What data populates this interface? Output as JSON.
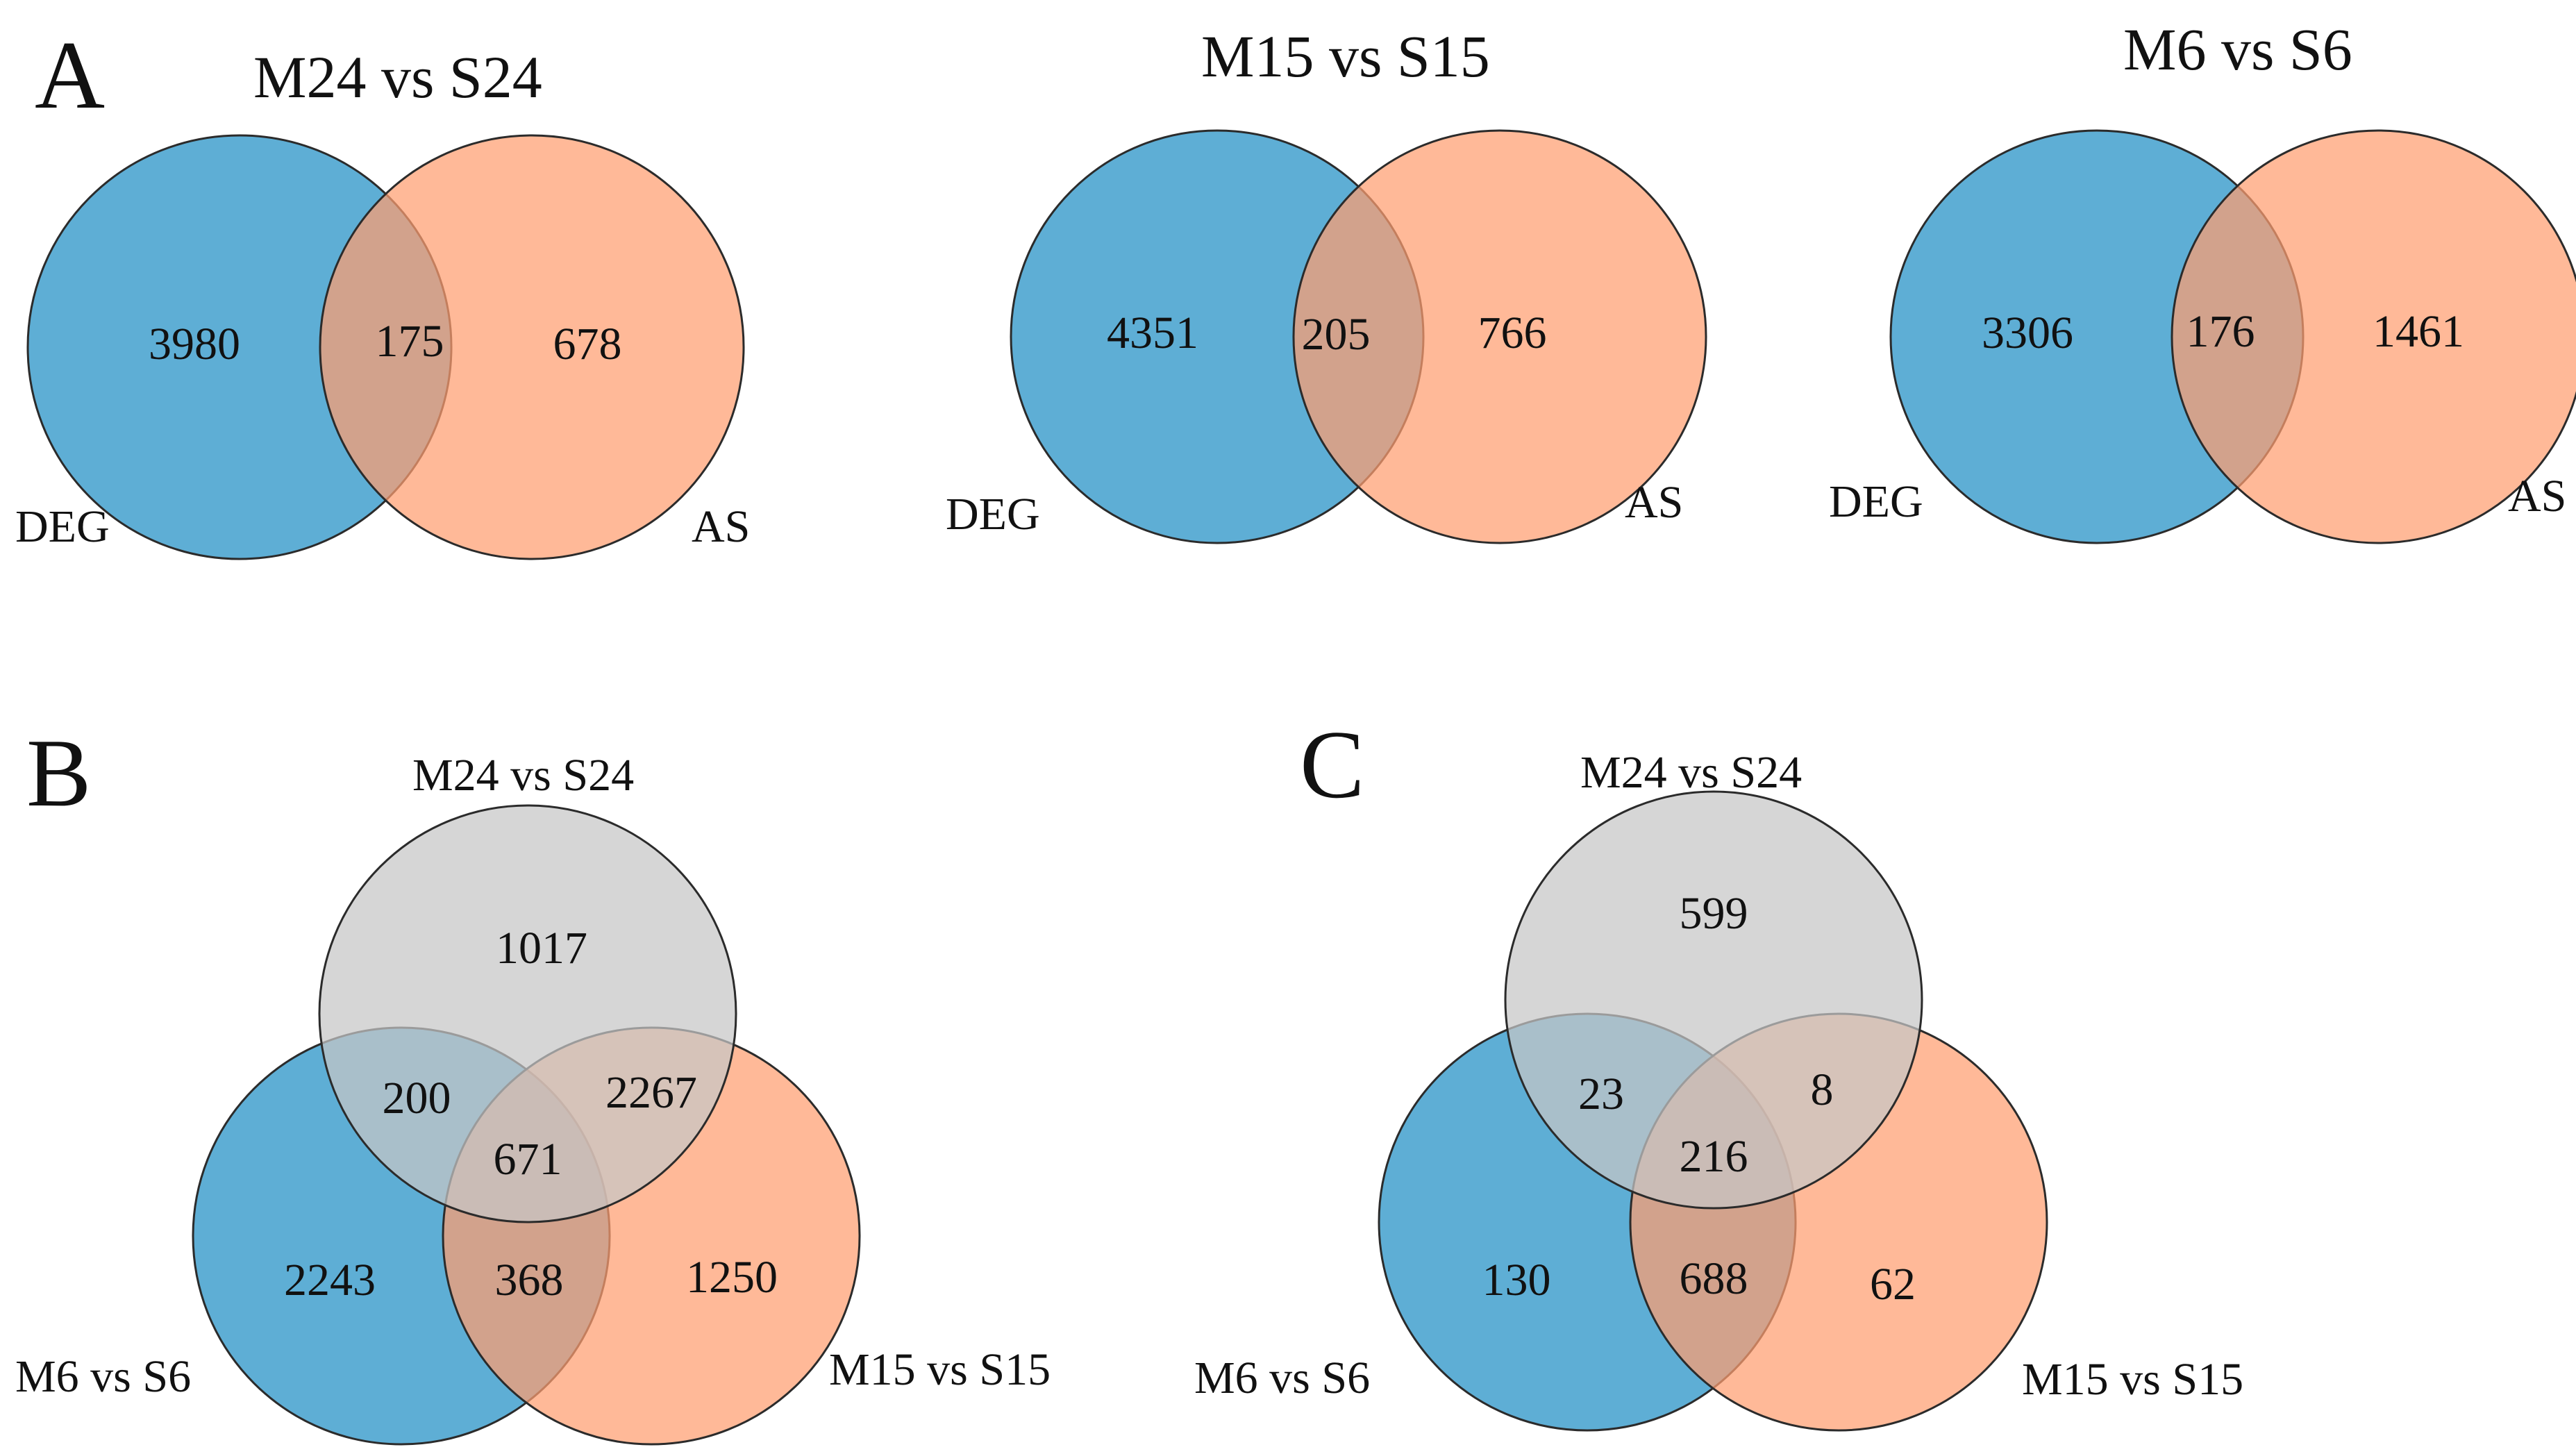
{
  "colors": {
    "deg_blue": "#5eaed5",
    "as_orange": "#ff9e70",
    "grey": "#c6c6c6",
    "stroke": "#2b2b2b"
  },
  "panel_a": {
    "letter": "A",
    "diagrams": [
      {
        "title": "M24 vs S24",
        "left_label": "DEG",
        "right_label": "AS",
        "left_only": "3980",
        "overlap": "175",
        "right_only": "678"
      },
      {
        "title": "M15 vs S15",
        "left_label": "DEG",
        "right_label": "AS",
        "left_only": "4351",
        "overlap": "205",
        "right_only": "766"
      },
      {
        "title": "M6 vs S6",
        "left_label": "DEG",
        "right_label": "AS",
        "left_only": "3306",
        "overlap": "176",
        "right_only": "1461"
      }
    ]
  },
  "panel_b": {
    "letter": "B",
    "top_label": "M24 vs S24",
    "left_label": "M6 vs S6",
    "right_label": "M15 vs S15",
    "top_only": "1017",
    "top_left": "200",
    "top_right": "2267",
    "center": "671",
    "left_only": "2243",
    "left_right": "368",
    "right_only": "1250"
  },
  "panel_c": {
    "letter": "C",
    "top_label": "M24 vs S24",
    "left_label": "M6 vs S6",
    "right_label": "M15 vs S15",
    "top_only": "599",
    "top_left": "23",
    "top_right": "8",
    "center": "216",
    "left_only": "130",
    "left_right": "688",
    "right_only": "62"
  }
}
